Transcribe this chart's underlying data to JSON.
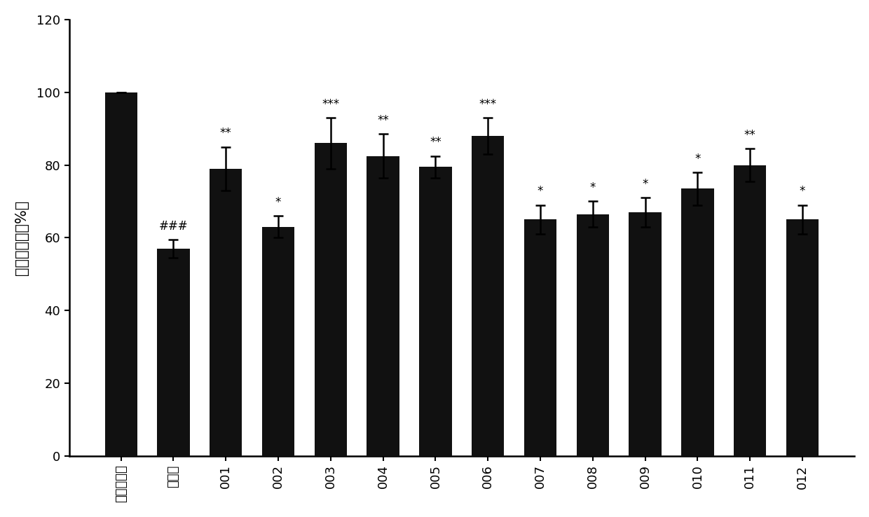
{
  "categories": [
    "正常对照组",
    "模型组",
    "001",
    "002",
    "003",
    "004",
    "005",
    "006",
    "007",
    "008",
    "009",
    "010",
    "011",
    "012"
  ],
  "values": [
    100,
    57,
    79,
    63,
    86,
    82.5,
    79.5,
    88,
    65,
    66.5,
    67,
    73.5,
    80,
    65
  ],
  "errors": [
    0,
    2.5,
    6,
    3,
    7,
    6,
    3,
    5,
    4,
    3.5,
    4,
    4.5,
    4.5,
    4
  ],
  "annotations": [
    "",
    "###",
    "**",
    "*",
    "***",
    "**",
    "**",
    "***",
    "*",
    "*",
    "*",
    "*",
    "**",
    "*"
  ],
  "bar_color": "#111111",
  "background_color": "#ffffff",
  "ylabel": "细胞存活率（%）",
  "ylim": [
    0,
    120
  ],
  "yticks": [
    0,
    20,
    40,
    60,
    80,
    100,
    120
  ],
  "annotation_fontsize": 12,
  "ylabel_fontsize": 15,
  "tick_fontsize": 13,
  "figsize": [
    12.4,
    7.38
  ],
  "dpi": 100
}
